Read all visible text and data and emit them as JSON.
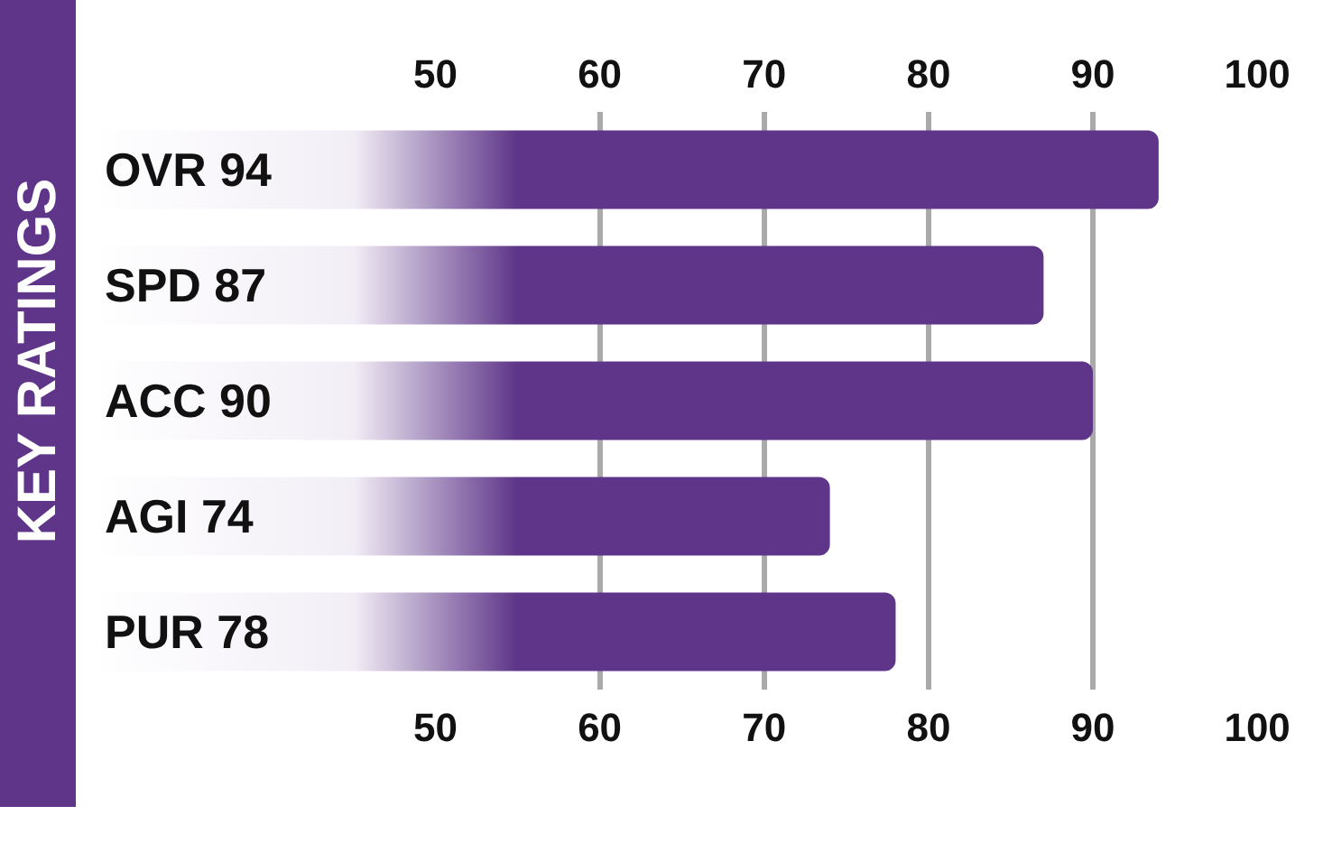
{
  "chart_data": {
    "type": "bar",
    "orientation": "horizontal",
    "title": "KEY RATINGS",
    "categories": [
      "OVR 94",
      "SPD 87",
      "ACC 90",
      "AGI 74",
      "PUR 78"
    ],
    "values": [
      94,
      87,
      90,
      74,
      78
    ],
    "color": "#5e3589",
    "xlim": [
      29,
      104
    ],
    "xticks": [
      50,
      60,
      70,
      80,
      90,
      100
    ],
    "x2lim": [
      29,
      104
    ],
    "x2ticks": [
      50,
      60,
      70,
      80,
      90,
      100
    ],
    "grid": "x"
  }
}
